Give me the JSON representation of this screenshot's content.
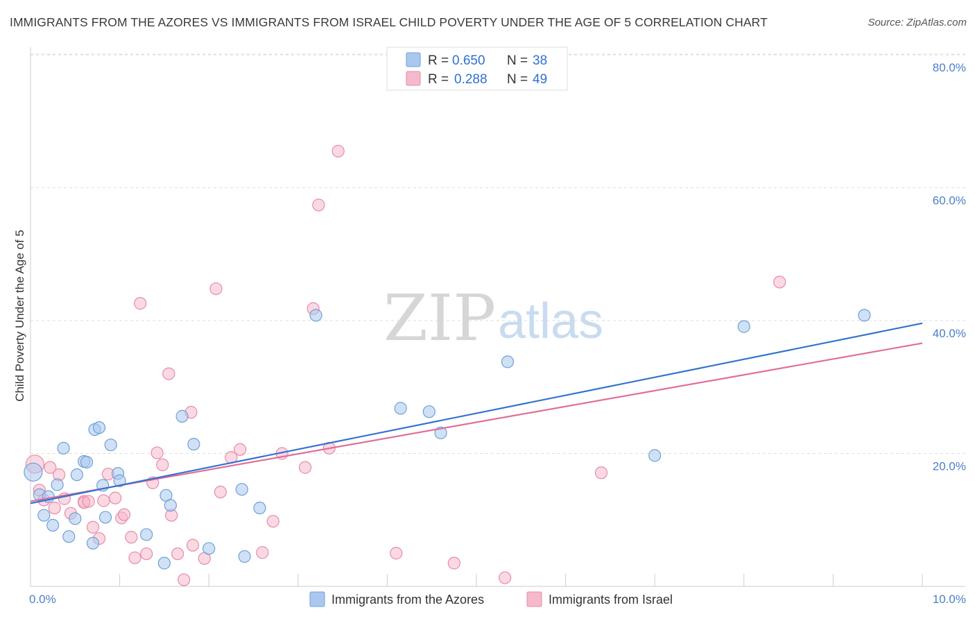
{
  "title": "IMMIGRANTS FROM THE AZORES VS IMMIGRANTS FROM ISRAEL CHILD POVERTY UNDER THE AGE OF 5 CORRELATION CHART",
  "source": "Source: ZipAtlas.com",
  "watermark": {
    "zip": "ZIP",
    "atlas": "atlas"
  },
  "legend": {
    "rows": [
      {
        "r_label": "R =",
        "r_value": "0.650",
        "n_label": "N =",
        "n_value": "38"
      },
      {
        "r_label": "R =",
        "r_value": "0.288",
        "n_label": "N =",
        "n_value": "49"
      }
    ]
  },
  "bottom_legend": [
    "Immigrants from the Azores",
    "Immigrants from Israel"
  ],
  "colors": {
    "azores_fill": "#aac8ee",
    "azores_stroke": "#6d9fd8",
    "azores_line": "#2f72d0",
    "israel_fill": "#f5b9cc",
    "israel_stroke": "#e88aa8",
    "israel_line": "#e06e98",
    "tick_label": "#4a7fc8",
    "grid": "#dddddd"
  },
  "chart_data": {
    "type": "scatter",
    "ylabel": "Child Poverty Under the Age of 5",
    "xlabel": "",
    "xlim": [
      0,
      10
    ],
    "ylim": [
      0,
      82
    ],
    "x_tick_labels": [
      "0.0%",
      "10.0%"
    ],
    "y_ticks": [
      20,
      40,
      60,
      80
    ],
    "y_tick_labels": [
      "20.0%",
      "40.0%",
      "60.0%",
      "80.0%"
    ],
    "grid": true,
    "series": [
      {
        "name": "Immigrants from the Azores",
        "points": [
          [
            0.03,
            17.2
          ],
          [
            0.1,
            13.8
          ],
          [
            0.15,
            10.7
          ],
          [
            0.2,
            13.5
          ],
          [
            0.25,
            9.2
          ],
          [
            0.3,
            15.3
          ],
          [
            0.37,
            20.8
          ],
          [
            0.43,
            7.5
          ],
          [
            0.5,
            10.2
          ],
          [
            0.52,
            16.8
          ],
          [
            0.6,
            18.8
          ],
          [
            0.63,
            18.7
          ],
          [
            0.7,
            6.5
          ],
          [
            0.72,
            23.6
          ],
          [
            0.77,
            23.9
          ],
          [
            0.81,
            15.2
          ],
          [
            0.84,
            10.4
          ],
          [
            0.9,
            21.3
          ],
          [
            0.98,
            17.0
          ],
          [
            1.0,
            15.9
          ],
          [
            1.3,
            7.8
          ],
          [
            1.5,
            3.5
          ],
          [
            1.52,
            13.7
          ],
          [
            1.57,
            12.2
          ],
          [
            1.7,
            25.6
          ],
          [
            1.83,
            21.4
          ],
          [
            2.0,
            5.7
          ],
          [
            2.37,
            14.6
          ],
          [
            2.4,
            4.5
          ],
          [
            2.57,
            11.8
          ],
          [
            3.2,
            40.8
          ],
          [
            4.15,
            26.8
          ],
          [
            4.47,
            26.3
          ],
          [
            4.6,
            23.1
          ],
          [
            5.35,
            33.8
          ],
          [
            7.0,
            19.7
          ],
          [
            8.0,
            39.1
          ],
          [
            9.35,
            40.8
          ]
        ]
      },
      {
        "name": "Immigrants from Israel",
        "points": [
          [
            0.05,
            18.4
          ],
          [
            0.1,
            14.5
          ],
          [
            0.15,
            13.0
          ],
          [
            0.22,
            17.9
          ],
          [
            0.27,
            11.8
          ],
          [
            0.32,
            16.8
          ],
          [
            0.38,
            13.2
          ],
          [
            0.45,
            11.0
          ],
          [
            0.6,
            12.8
          ],
          [
            0.6,
            12.6
          ],
          [
            0.65,
            12.8
          ],
          [
            0.7,
            8.9
          ],
          [
            0.77,
            7.2
          ],
          [
            0.82,
            12.9
          ],
          [
            0.87,
            16.9
          ],
          [
            0.95,
            13.3
          ],
          [
            1.02,
            10.3
          ],
          [
            1.05,
            10.8
          ],
          [
            1.13,
            7.4
          ],
          [
            1.17,
            4.3
          ],
          [
            1.23,
            42.6
          ],
          [
            1.3,
            4.9
          ],
          [
            1.37,
            15.6
          ],
          [
            1.42,
            20.1
          ],
          [
            1.48,
            18.3
          ],
          [
            1.55,
            32.0
          ],
          [
            1.58,
            10.7
          ],
          [
            1.65,
            4.9
          ],
          [
            1.72,
            1.0
          ],
          [
            1.8,
            26.2
          ],
          [
            1.82,
            6.2
          ],
          [
            1.95,
            4.2
          ],
          [
            2.08,
            44.8
          ],
          [
            2.13,
            14.2
          ],
          [
            2.25,
            19.4
          ],
          [
            2.35,
            20.6
          ],
          [
            2.6,
            5.1
          ],
          [
            2.72,
            9.8
          ],
          [
            2.82,
            20.0
          ],
          [
            3.08,
            17.9
          ],
          [
            3.17,
            41.8
          ],
          [
            3.23,
            57.4
          ],
          [
            3.35,
            20.8
          ],
          [
            3.45,
            65.5
          ],
          [
            4.1,
            5.0
          ],
          [
            4.75,
            3.5
          ],
          [
            5.32,
            1.3
          ],
          [
            6.4,
            17.1
          ],
          [
            8.4,
            45.8
          ]
        ]
      }
    ],
    "trend_lines": [
      {
        "name": "Immigrants from the Azores",
        "x": [
          0,
          10
        ],
        "y": [
          12.5,
          39.6
        ]
      },
      {
        "name": "Immigrants from Israel",
        "x": [
          0,
          10
        ],
        "y": [
          12.8,
          36.6
        ]
      }
    ]
  }
}
